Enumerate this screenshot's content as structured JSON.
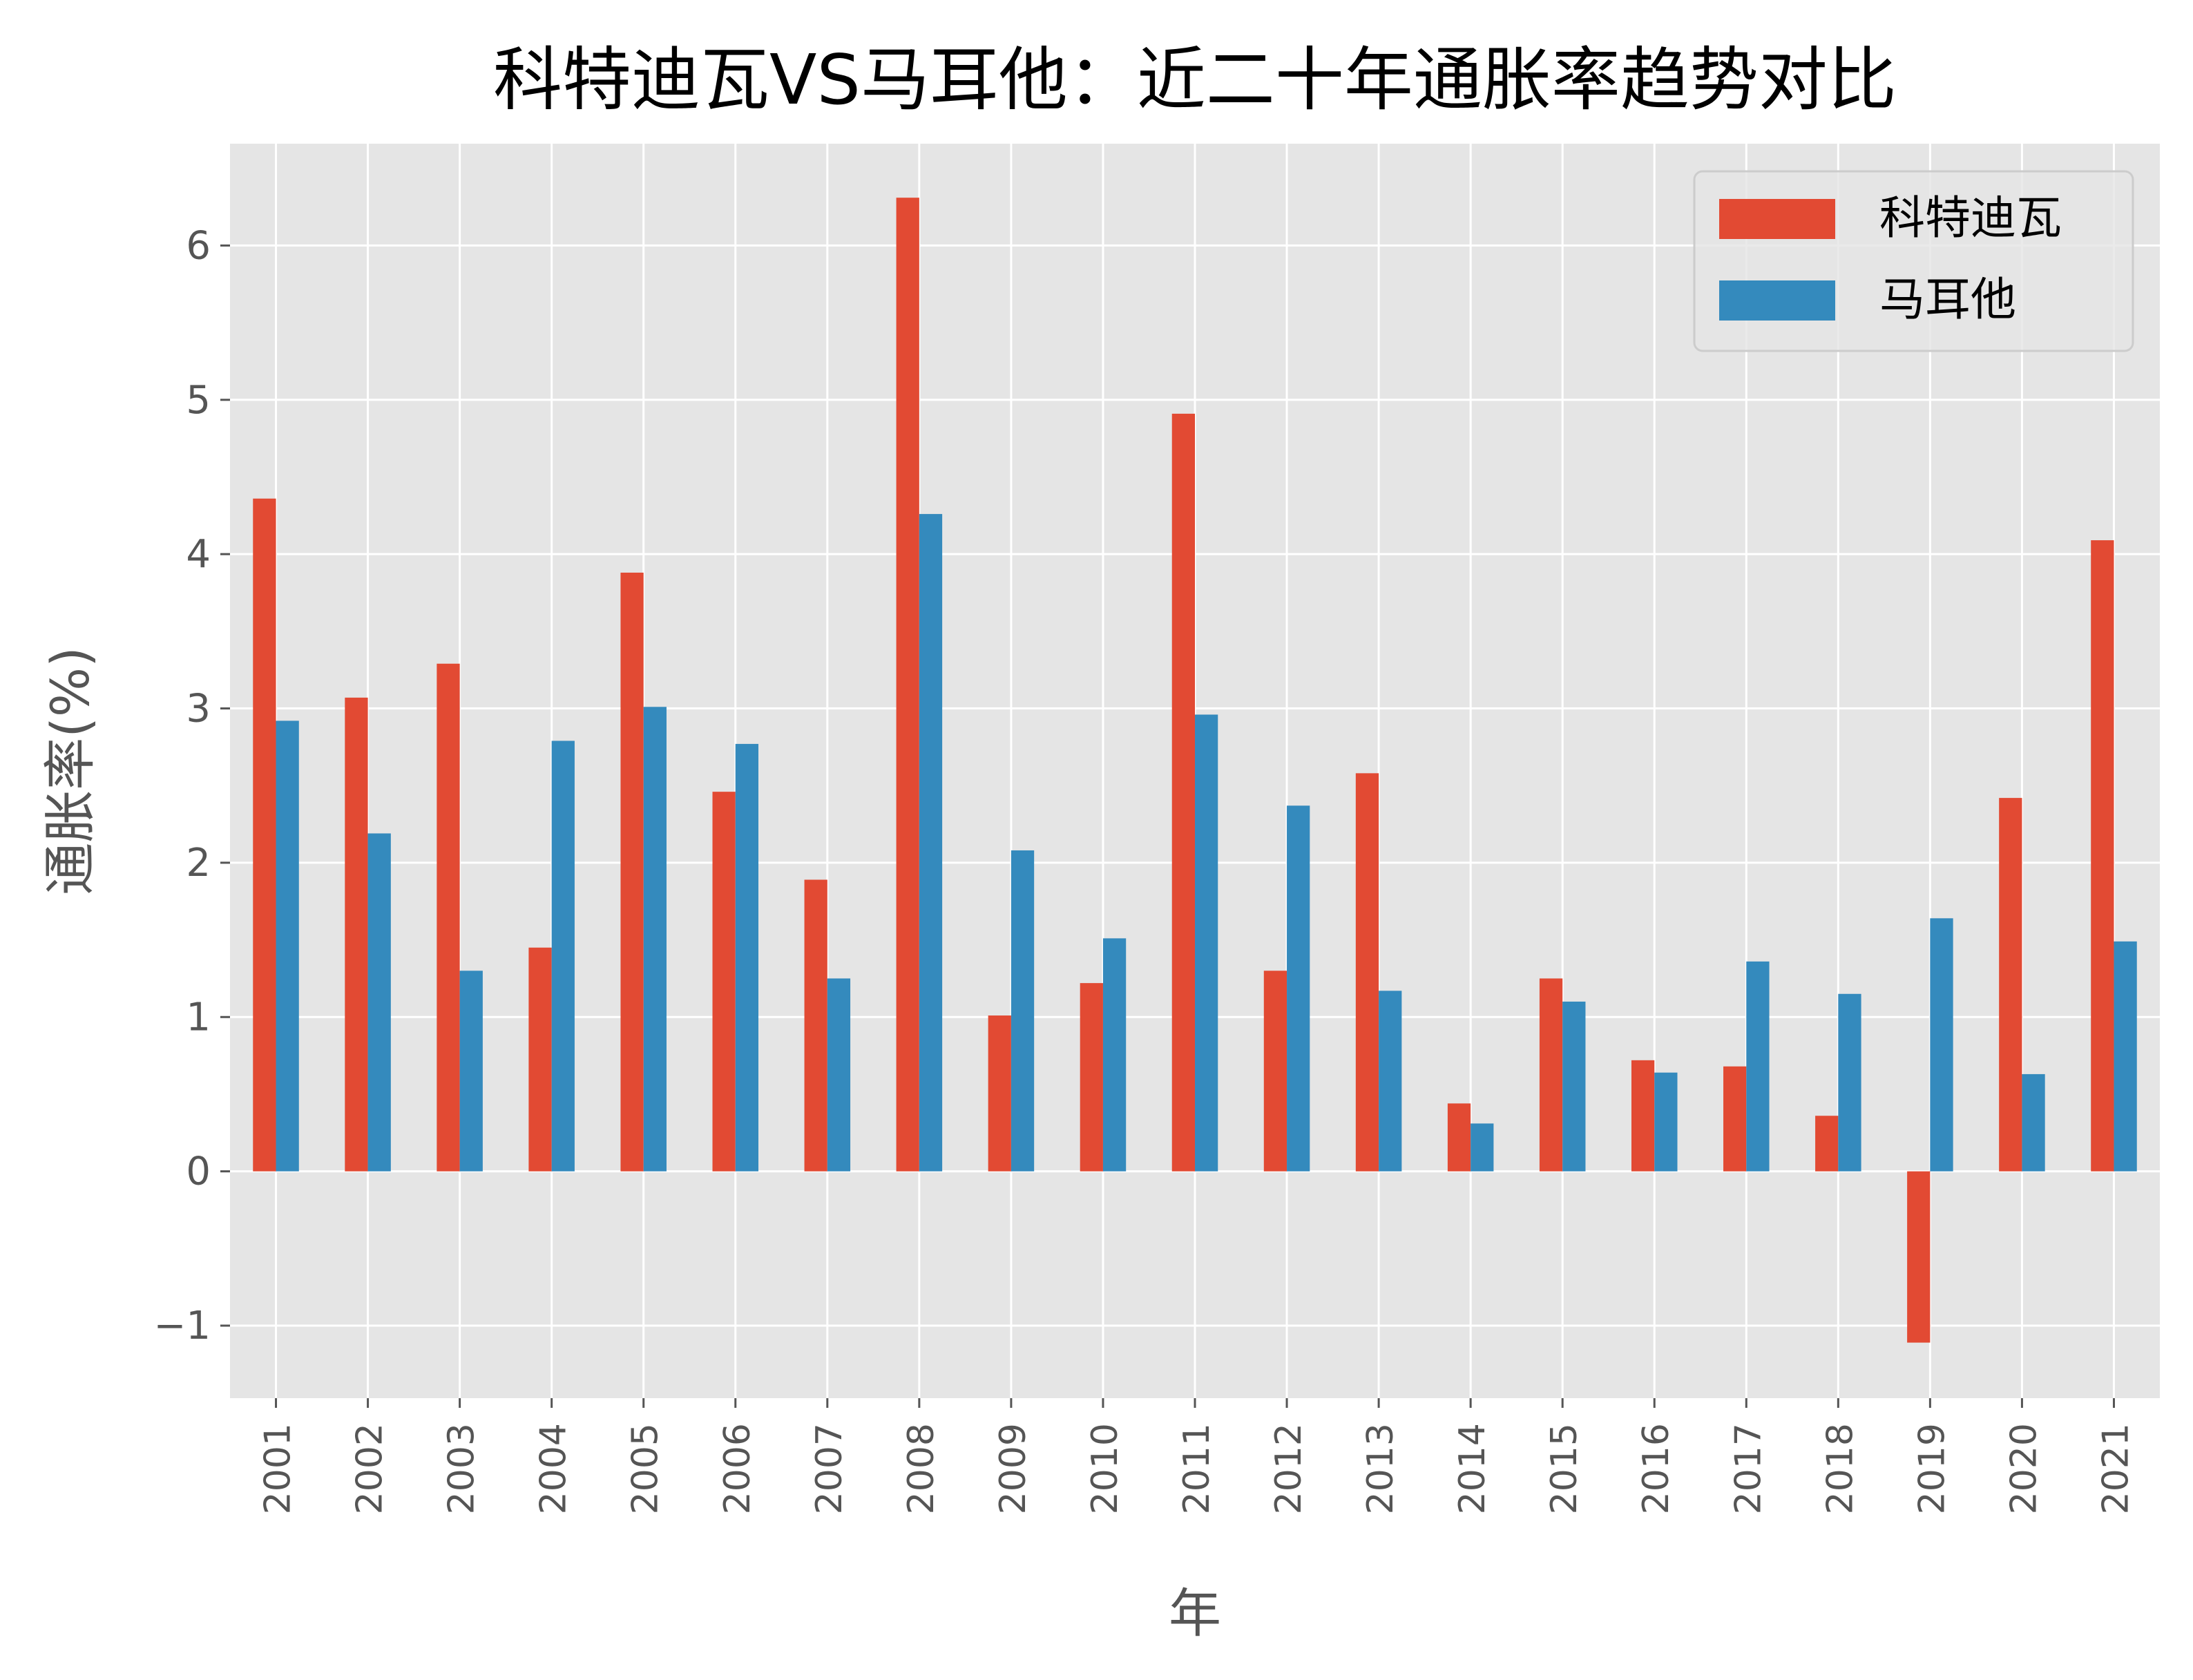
{
  "chart_data": {
    "type": "bar",
    "title": "科特迪瓦VS马耳他：近二十年通胀率趋势对比",
    "xlabel": "年",
    "ylabel": "通胀率(%)",
    "categories": [
      "2001",
      "2002",
      "2003",
      "2004",
      "2005",
      "2006",
      "2007",
      "2008",
      "2009",
      "2010",
      "2011",
      "2012",
      "2013",
      "2014",
      "2015",
      "2016",
      "2017",
      "2018",
      "2019",
      "2020",
      "2021"
    ],
    "series": [
      {
        "name": "科特迪瓦",
        "color": "#E24A33",
        "values": [
          4.36,
          3.07,
          3.29,
          1.45,
          3.88,
          2.46,
          1.89,
          6.31,
          1.01,
          1.22,
          4.91,
          1.3,
          2.58,
          0.44,
          1.25,
          0.72,
          0.68,
          0.36,
          -1.11,
          2.42,
          4.09
        ]
      },
      {
        "name": "马耳他",
        "color": "#348ABD",
        "values": [
          2.92,
          2.19,
          1.3,
          2.79,
          3.01,
          2.77,
          1.25,
          4.26,
          2.08,
          1.51,
          2.96,
          2.37,
          1.17,
          0.31,
          1.1,
          0.64,
          1.36,
          1.15,
          1.64,
          0.63,
          1.49
        ]
      }
    ],
    "yticks": [
      -1,
      0,
      1,
      2,
      3,
      4,
      5,
      6
    ],
    "ytick_labels": [
      "−1",
      "0",
      "1",
      "2",
      "3",
      "4",
      "5",
      "6"
    ],
    "ylim": [
      -1.47,
      6.66
    ],
    "grid": true,
    "legend_position": "top-right",
    "style": {
      "plot_background": "#E5E5E5",
      "grid_color": "#FFFFFF",
      "text_color": "#555555",
      "title_color": "#000000"
    }
  }
}
